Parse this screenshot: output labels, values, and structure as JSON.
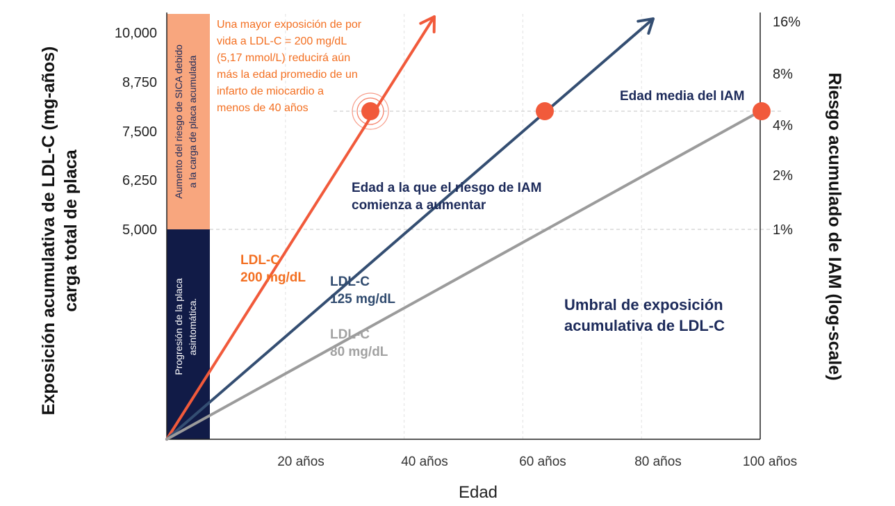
{
  "chart_data": {
    "type": "line",
    "xlabel": "Edad",
    "ylabel_left_line1": "Exposición acumulativa de LDL-C (mg-años)",
    "ylabel_left_line2": "carga total de placa",
    "ylabel_right": "Riesgo acumulado de IAM (log-scale)",
    "x_ticks": [
      "20 años",
      "40 años",
      "60 años",
      "80 años",
      "100 años"
    ],
    "x_tick_values": [
      20,
      40,
      60,
      80,
      100
    ],
    "xlim": [
      0,
      100
    ],
    "y_left_ticks": [
      "10,000",
      "8,750",
      "7,500",
      "6,250",
      "5,000"
    ],
    "y_left_tick_values": [
      10000,
      8750,
      7500,
      6250,
      5000
    ],
    "y_right_ticks": [
      "16%",
      "8%",
      "4%",
      "2%",
      "1%"
    ],
    "y_right_tick_values": [
      16,
      8,
      4,
      2,
      1
    ],
    "y_left_scale": "mg-años",
    "threshold_value": 5000,
    "iam_value": 8000,
    "series": [
      {
        "name": "LDL-C 200 mg/dL",
        "label_line1": "LDL-C",
        "label_line2": "200 mg/dL",
        "color": "#f15a3b",
        "label_color": "#f36f21",
        "ldl": 200,
        "x": [
          0,
          40
        ],
        "y": [
          0,
          8000
        ],
        "arrow": true,
        "mi_age": 40
      },
      {
        "name": "LDL-C 125 mg/dL",
        "label_line1": "LDL-C",
        "label_line2": "125 mg/dL",
        "color": "#344e72",
        "label_color": "#2f4a6e",
        "ldl": 125,
        "x": [
          0,
          64
        ],
        "y": [
          0,
          8000
        ],
        "arrow": true,
        "mi_age": 64
      },
      {
        "name": "LDL-C 80 mg/dL",
        "label_line1": "LDL-C",
        "label_line2": "80 mg/dL",
        "color": "#9b9b9b",
        "label_color": "#a2a2a2",
        "ldl": 80,
        "x": [
          0,
          100
        ],
        "y": [
          0,
          8000
        ],
        "arrow": false,
        "mi_age": 100
      }
    ],
    "annotations": {
      "sica_band": {
        "line1": "Aumento del riesgo de SICA debido",
        "line2": "a la carga de placa acumulada",
        "color": "#f8a67e"
      },
      "asymptomatic_band": {
        "line1": "Progresión de la placa",
        "line2": "asintomática.",
        "color": "#111b47"
      },
      "orange_note": [
        "Una mayor exposición de por",
        "vida a LDL-C = 200 mg/dL",
        "(5,17 mmol/L) reducirá aún",
        "más la edad promedio de un",
        "infarto de miocardio a",
        "menos de 40 años"
      ],
      "orange_note_color": "#f36f21",
      "edad_media": "Edad media del IAM",
      "edad_riesgo": [
        "Edad a la que el riesgo de IAM",
        "comienza a aumentar"
      ],
      "umbral": [
        "Umbral de exposición",
        "acumulativa de LDL-C"
      ],
      "navy_text_color": "#1c2a5a",
      "marker_color": "#f15a3b"
    },
    "grid": "dashed-vertical",
    "legend": "inline-labels"
  }
}
